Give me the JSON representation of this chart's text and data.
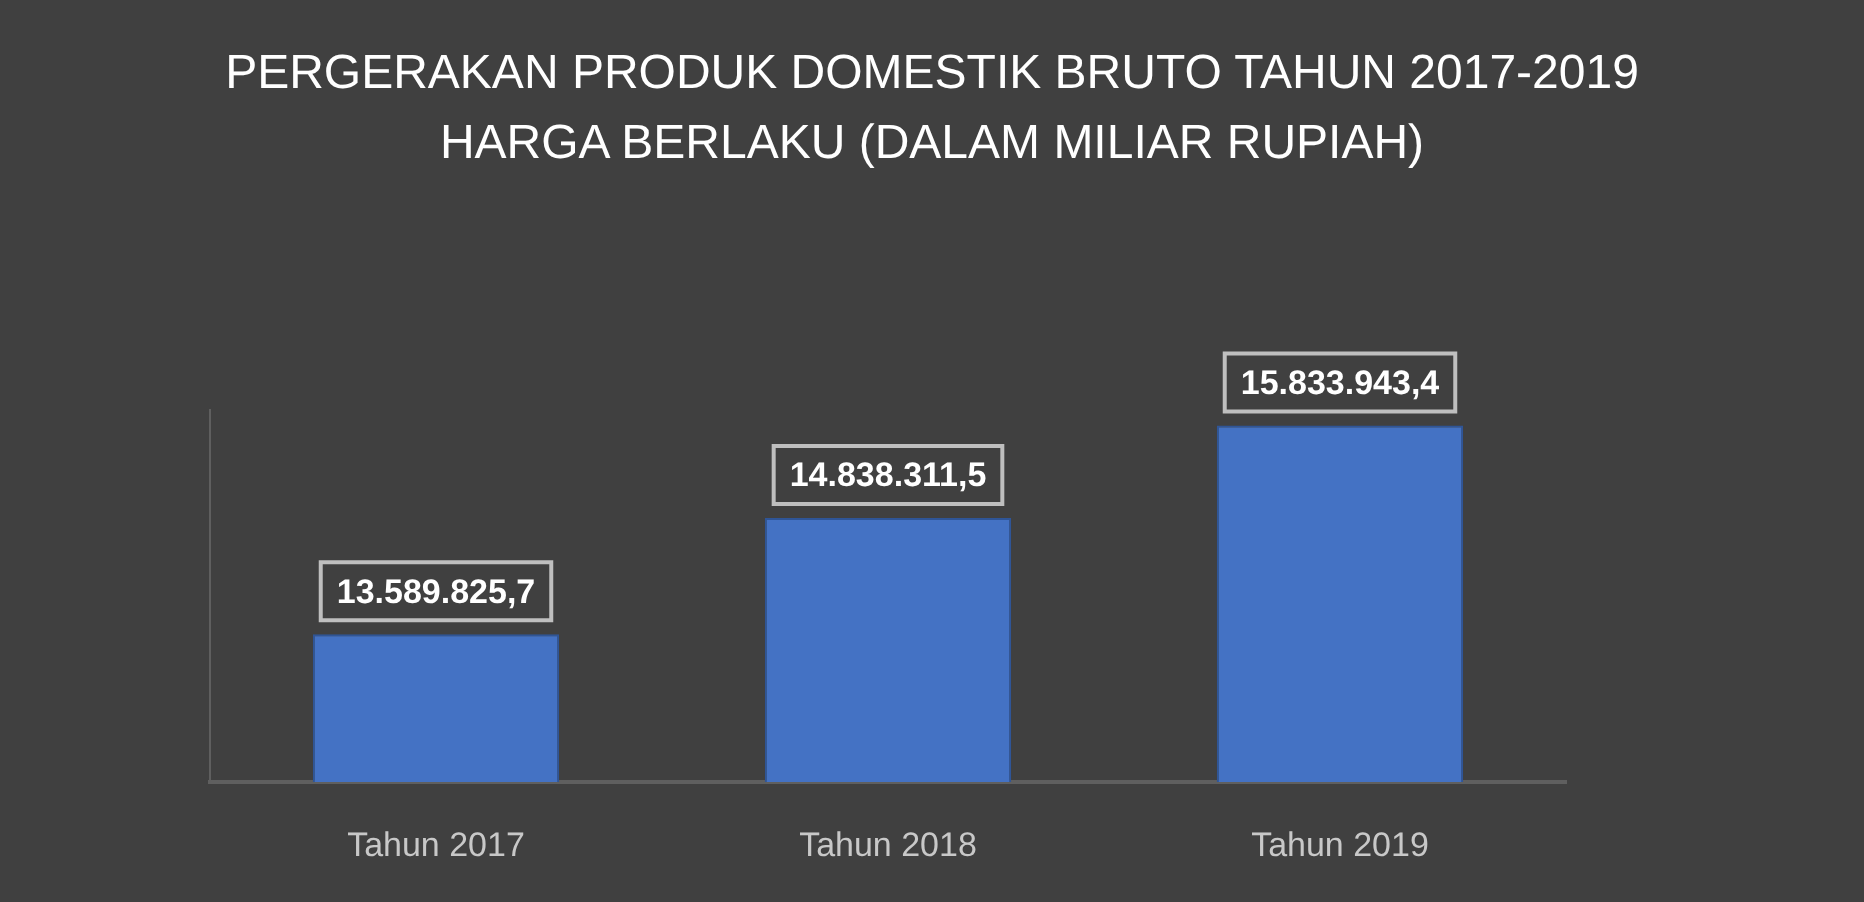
{
  "chart_data": {
    "type": "bar",
    "title": "PERGERAKAN PRODUK DOMESTIK BRUTO TAHUN 2017-2019\nHARGA BERLAKU (DALAM MILIAR RUPIAH)",
    "categories": [
      "Tahun 2017",
      "Tahun 2018",
      "Tahun 2019"
    ],
    "values": [
      13589825.7,
      14838311.5,
      15833943.4
    ],
    "value_labels": [
      "13.589.825,7",
      "14.838.311,5",
      "15.833.943,4"
    ],
    "color": "#4472c4",
    "ylim": [
      12000000,
      16000000
    ],
    "tick_labels": "x"
  }
}
